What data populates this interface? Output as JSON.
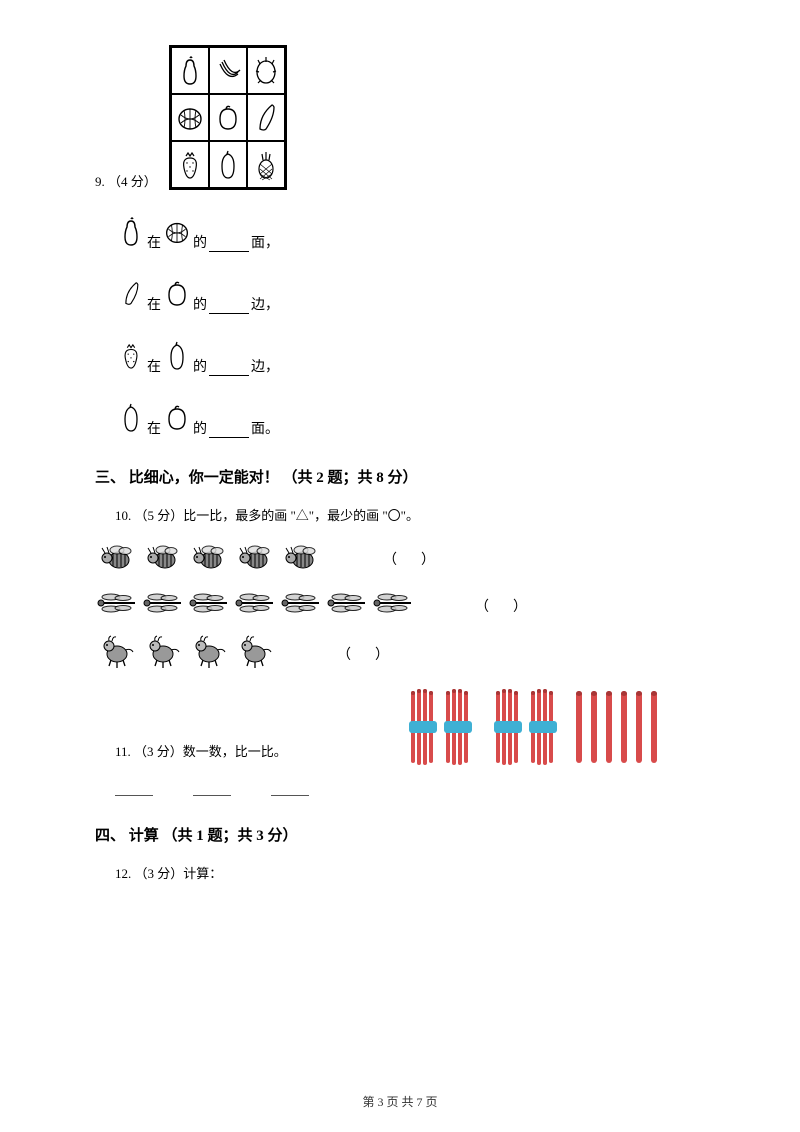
{
  "q9": {
    "label": "9. （4 分）",
    "lines": [
      {
        "a_icon": "pear",
        "mid": "在",
        "b_icon": "watermelon",
        "suffix": "的",
        "tail": "面，"
      },
      {
        "a_icon": "pea",
        "mid": "在",
        "b_icon": "peach",
        "suffix": "的",
        "tail": "边，"
      },
      {
        "a_icon": "strawberry",
        "mid": "在",
        "b_icon": "papaya",
        "suffix": "的",
        "tail": "边，"
      },
      {
        "a_icon": "papaya",
        "mid": "在",
        "b_icon": "peach",
        "suffix": "的",
        "tail": "面。"
      }
    ]
  },
  "section3": {
    "title": "三、 比细心，你一定能对！ （共 2 题；共 8 分）"
  },
  "q10": {
    "label": "10. （5 分）比一比，最多的画 \"△\"，最少的画 \"〇\"。",
    "rows": [
      {
        "bug": "bee",
        "count": 5
      },
      {
        "bug": "dragonfly",
        "count": 7
      },
      {
        "bug": "birdbug",
        "count": 4
      }
    ],
    "paren": "（     ）"
  },
  "q11": {
    "label": "11. （3 分）数一数，比一比。",
    "bundle_count": 4,
    "stick_count": 6,
    "bundle_color": "#d84b4b",
    "band_color": "#3fb0d4",
    "stick_color": "#d84b4b",
    "stick_top": "#a83636"
  },
  "section4": {
    "title": "四、 计算 （共 1 题；共 3 分）"
  },
  "q12": {
    "label": "12. （3 分）计算："
  },
  "footer": "第 3 页 共 7 页"
}
